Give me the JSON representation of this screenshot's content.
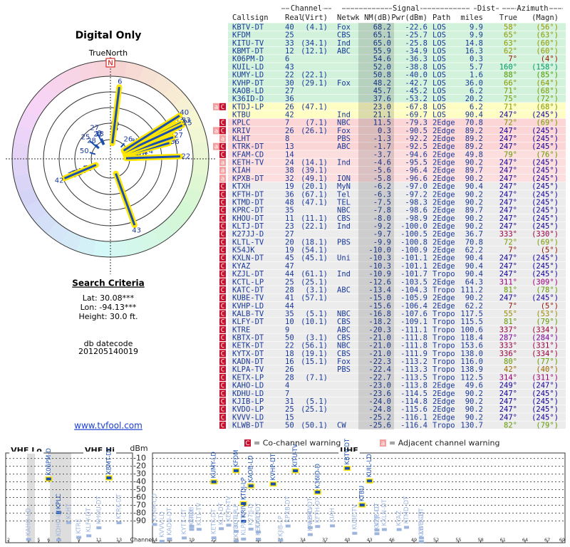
{
  "title": "Digital Only",
  "polar": {
    "north_caption": "TrueNorth",
    "north_mark": "N",
    "rlim": [
      -30,
      70
    ]
  },
  "search": {
    "title": "Search Criteria",
    "lat": "Lat: 30.08***",
    "lon": "Lon: -94.13***",
    "height": "Height: 30.0 ft.",
    "datecode_label": "db datecode",
    "datecode": "201205140019",
    "link": "www.tvfool.com"
  },
  "table": {
    "groups": [
      "Channel",
      "Signal",
      "Dist",
      "Azimuth"
    ],
    "headers": [
      "Callsign",
      "Real",
      "(Virt)",
      "Netwk",
      "NM(dB)",
      "Pwr(dBm)",
      "Path",
      "miles",
      "True",
      "(Magn)"
    ],
    "rows": [
      [
        "KBTV-DT",
        40,
        "(4.1)",
        "Fox",
        68.2,
        -22.6,
        "LOS",
        9.9,
        {
          "value": 58,
          "label": "58°"
        },
        "(56°)"
      ],
      [
        "KFDM",
        25,
        null,
        "CBS",
        65.1,
        -25.7,
        "LOS",
        9.9,
        {
          "value": 65,
          "label": "65°"
        },
        "(63°)"
      ],
      [
        "KITU-TV",
        33,
        "(34.1)",
        "Ind",
        {
          "value": 65,
          "label": "65.0"
        },
        -25.8,
        "LOS",
        14.8,
        {
          "value": 63,
          "label": "63°"
        },
        "(60°)"
      ],
      [
        "KBMT-DT",
        12,
        "(12.1)",
        "ABC",
        55.9,
        -34.9,
        "LOS",
        16.3,
        {
          "value": 62,
          "label": "62°"
        },
        "(60°)"
      ],
      [
        "K06PM-D",
        6,
        null,
        null,
        54.6,
        -36.3,
        "LOS",
        0.3,
        {
          "value": 7,
          "label": "7°"
        },
        "(4°)"
      ],
      [
        "KUIL-LD",
        43,
        null,
        null,
        {
          "value": 52,
          "label": "52.0"
        },
        -38.8,
        "LOS",
        5.7,
        {
          "value": 160,
          "label": "160°"
        },
        "(158°)"
      ],
      [
        "KUMY-LD",
        22,
        "(22.1)",
        null,
        50.8,
        {
          "value": -40,
          "label": "-40.0"
        },
        "LOS",
        1.6,
        {
          "value": 88,
          "label": "88°"
        },
        "(85°)"
      ],
      [
        "KVHP-DT",
        30,
        "(29.1)",
        "Fox",
        48.2,
        -42.7,
        "LOS",
        {
          "value": 36,
          "label": "36.0"
        },
        {
          "value": 66,
          "label": "66°"
        },
        "(64°)"
      ],
      [
        "KAOB-LD",
        27,
        null,
        null,
        45.7,
        -45.2,
        "LOS",
        6.2,
        {
          "value": 71,
          "label": "71°"
        },
        "(68°)"
      ],
      [
        "K36ID-D",
        36,
        null,
        null,
        37.6,
        -53.2,
        "LOS",
        20.2,
        {
          "value": 75,
          "label": "75°"
        },
        "(72°)"
      ],
      [
        "KTDJ-LP",
        26,
        "(47.1)",
        null,
        {
          "value": 23,
          "label": "23.0"
        },
        -67.8,
        "LOS",
        6.2,
        {
          "value": 71,
          "label": "71°"
        },
        "(68°)"
      ],
      [
        "KTBU",
        42,
        null,
        "Ind",
        21.1,
        -69.7,
        "LOS",
        90.4,
        {
          "value": 247,
          "label": "247°"
        },
        "(245°)"
      ],
      [
        "KPLC",
        7,
        "(7.1)",
        "NBC",
        11.5,
        -79.3,
        "2Edge",
        70.8,
        {
          "value": 72,
          "label": "72°"
        },
        "(69°)"
      ],
      [
        "KRIV",
        26,
        "(26.1)",
        "Fox",
        0.3,
        -90.5,
        "2Edge",
        89.2,
        {
          "value": 247,
          "label": "247°"
        },
        "(245°)"
      ],
      [
        "KLHT",
        8,
        null,
        "PBS",
        -1.3,
        -92.2,
        "2Edge",
        89.2,
        {
          "value": 247,
          "label": "247°"
        },
        "(245°)"
      ],
      [
        "KTRK-DT",
        13,
        null,
        "ABC",
        -1.7,
        -92.5,
        "2Edge",
        89.2,
        {
          "value": 247,
          "label": "247°"
        },
        "(245°)"
      ],
      [
        "KFAM-CD",
        14,
        null,
        null,
        -3.7,
        -94.6,
        "2Edge",
        49.8,
        {
          "value": 79,
          "label": "79°"
        },
        "(76°)"
      ],
      [
        "KETH-TV",
        24,
        "(14.1)",
        "Ind",
        -4.6,
        -95.5,
        "2Edge",
        90.2,
        {
          "value": 247,
          "label": "247°"
        },
        "(245°)"
      ],
      [
        "KIAH",
        38,
        "(39.1)",
        null,
        -5.6,
        -96.4,
        "2Edge",
        89.7,
        {
          "value": 247,
          "label": "247°"
        },
        "(245°)"
      ],
      [
        "KPXB-DT",
        32,
        "(49.1)",
        "ION",
        -5.8,
        -96.6,
        "2Edge",
        90.2,
        {
          "value": 247,
          "label": "247°"
        },
        "(245°)"
      ],
      [
        "KTXH",
        19,
        "(20.1)",
        "MyN",
        -6.2,
        {
          "value": -97,
          "label": "-97.0"
        },
        "2Edge",
        90.4,
        {
          "value": 247,
          "label": "247°"
        },
        "(245°)"
      ],
      [
        "KFTH-DT",
        36,
        "(67.1)",
        "Tel",
        -6.3,
        -97.2,
        "2Edge",
        90.2,
        {
          "value": 247,
          "label": "247°"
        },
        "(245°)"
      ],
      [
        "KTMD-DT",
        48,
        "(47.1)",
        "TEL",
        -7.5,
        -98.3,
        "2Edge",
        90.2,
        {
          "value": 247,
          "label": "247°"
        },
        "(245°)"
      ],
      [
        "KPRC-DT",
        35,
        null,
        "NBC",
        -7.8,
        -98.6,
        "2Edge",
        89.7,
        {
          "value": 247,
          "label": "247°"
        },
        "(245°)"
      ],
      [
        "KHOU-DT",
        11,
        "(11.1)",
        "CBS",
        {
          "value": -8,
          "label": "-8.0"
        },
        -98.9,
        "2Edge",
        90.2,
        {
          "value": 247,
          "label": "247°"
        },
        "(245°)"
      ],
      [
        "KLTJ-DT",
        23,
        "(22.1)",
        "Ind",
        -9.2,
        {
          "value": -100,
          "label": "-100.0"
        },
        "2Edge",
        90.2,
        {
          "value": 247,
          "label": "247°"
        },
        "(245°)"
      ],
      [
        "K27JJ-D",
        27,
        null,
        null,
        -9.7,
        -100.5,
        "2Edge",
        36.7,
        {
          "value": 333,
          "label": "333°"
        },
        "(330°)"
      ],
      [
        "KLTL-TV",
        20,
        "(18.1)",
        "PBS",
        -9.9,
        -100.8,
        "2Edge",
        70.8,
        {
          "value": 72,
          "label": "72°"
        },
        "(69°)"
      ],
      [
        "K54JK",
        19,
        "(54.1)",
        null,
        {
          "value": -10,
          "label": "-10.0"
        },
        -100.9,
        "2Edge",
        62.2,
        {
          "value": 7,
          "label": "7°"
        },
        "(5°)"
      ],
      [
        "KXLN-DT",
        45,
        "(45.1)",
        "Uni",
        -10.3,
        -101.1,
        "2Edge",
        90.4,
        {
          "value": 247,
          "label": "247°"
        },
        "(245°)"
      ],
      [
        "KYAZ",
        47,
        null,
        null,
        -10.3,
        -101.1,
        "2Edge",
        90.4,
        {
          "value": 247,
          "label": "247°"
        },
        "(245°)"
      ],
      [
        "KZJL-DT",
        44,
        "(61.1)",
        "Ind",
        -10.9,
        -101.7,
        "Tropo",
        90.4,
        {
          "value": 247,
          "label": "247°"
        },
        "(245°)"
      ],
      [
        "KCTL-LP",
        25,
        "(25.1)",
        null,
        -12.6,
        -103.5,
        "2Edge",
        64.3,
        {
          "value": 311,
          "label": "311°"
        },
        "(309°)"
      ],
      [
        "KATC-DT",
        28,
        "(3.1)",
        "ABC",
        -13.4,
        -104.3,
        "Tropo",
        111.2,
        {
          "value": 81,
          "label": "81°"
        },
        "(78°)"
      ],
      [
        "KUBE-TV",
        41,
        "(57.1)",
        null,
        {
          "value": -15,
          "label": "-15.0"
        },
        -105.9,
        "2Edge",
        90.2,
        {
          "value": 247,
          "label": "247°"
        },
        "(245°)"
      ],
      [
        "KVHP-LD",
        44,
        null,
        null,
        -15.6,
        -106.4,
        "2Edge",
        62.2,
        {
          "value": 7,
          "label": "7°"
        },
        "(5°)"
      ],
      [
        "KALB-TV",
        35,
        "(5.1)",
        "NBC",
        -16.8,
        -107.6,
        "Tropo",
        117.5,
        {
          "value": 55,
          "label": "55°"
        },
        "(53°)"
      ],
      [
        "KLFY-DT",
        10,
        "(10.1)",
        "CBS",
        -18.2,
        -109.1,
        "Tropo",
        115.5,
        {
          "value": 81,
          "label": "81°"
        },
        "(79°)"
      ],
      [
        "KTRE",
        9,
        null,
        "ABC",
        -20.3,
        -111.1,
        "Tropo",
        100.6,
        {
          "value": 337,
          "label": "337°"
        },
        "(334°)"
      ],
      [
        "KBTX-DT",
        50,
        "(3.1)",
        "CBS",
        {
          "value": -21,
          "label": "-21.0"
        },
        -111.8,
        "Tropo",
        118.4,
        {
          "value": 287,
          "label": "287°"
        },
        "(284°)"
      ],
      [
        "KETK-DT",
        22,
        "(56.1)",
        "NBC",
        {
          "value": -21,
          "label": "-21.0"
        },
        -111.8,
        "Tropo",
        153.6,
        {
          "value": 333,
          "label": "333°"
        },
        "(331°)"
      ],
      [
        "KYTX-DT",
        18,
        "(19.1)",
        "CBS",
        {
          "value": -21,
          "label": "-21.0"
        },
        -111.9,
        "Tropo",
        {
          "value": 138,
          "label": "138.0"
        },
        {
          "value": 336,
          "label": "336°"
        },
        "(334°)"
      ],
      [
        "KADN-DT",
        16,
        "(15.1)",
        "Fox",
        -22.3,
        -113.2,
        "Tropo",
        {
          "value": 116,
          "label": "116.0"
        },
        {
          "value": 80,
          "label": "80°"
        },
        "(77°)"
      ],
      [
        "KLPA-TV",
        26,
        null,
        "PBS",
        -22.4,
        -113.3,
        "Tropo",
        138.9,
        {
          "value": 42,
          "label": "42°"
        },
        "(40°)"
      ],
      [
        "KETX-LP",
        28,
        "(7.1)",
        null,
        -22.7,
        -113.5,
        "Tropo",
        112.5,
        {
          "value": 314,
          "label": "314°"
        },
        "(311°)"
      ],
      [
        "KAHO-LD",
        4,
        null,
        null,
        {
          "value": -23,
          "label": "-23.0"
        },
        -113.8,
        "2Edge",
        49.6,
        {
          "value": 249,
          "label": "249°"
        },
        "(247°)"
      ],
      [
        "KDHU-LD",
        7,
        null,
        null,
        -23.6,
        -114.5,
        "2Edge",
        90.2,
        {
          "value": 247,
          "label": "247°"
        },
        "(245°)"
      ],
      [
        "KJIB-LP",
        31,
        "(5.1)",
        null,
        {
          "value": -24,
          "label": "-24.0"
        },
        -114.8,
        "2Edge",
        90.2,
        {
          "value": 247,
          "label": "247°"
        },
        "(245°)"
      ],
      [
        "KVDO-LP",
        25,
        "(25.1)",
        null,
        -24.8,
        -115.6,
        "2Edge",
        90.2,
        {
          "value": 247,
          "label": "247°"
        },
        "(245°)"
      ],
      [
        "KVVV-LD",
        15,
        null,
        null,
        -25.2,
        -116.1,
        "2Edge",
        90.2,
        {
          "value": 247,
          "label": "247°"
        },
        "(245°)"
      ],
      [
        "KLWB-DT",
        50,
        "(50.1)",
        "CW",
        -25.6,
        -116.4,
        "Tropo",
        130.7,
        {
          "value": 82,
          "label": "82°"
        },
        "(79°)"
      ]
    ],
    "warnings": [
      null,
      null,
      null,
      null,
      null,
      null,
      null,
      null,
      null,
      null,
      [
        "a",
        "C"
      ],
      null,
      [
        "C"
      ],
      [
        "a",
        "C"
      ],
      [
        "a"
      ],
      [
        "a",
        "C"
      ],
      [
        "C"
      ],
      [
        "a"
      ],
      [
        "a"
      ],
      [
        "a"
      ],
      [
        "C"
      ],
      [
        "C"
      ],
      [
        "C"
      ],
      [
        "C"
      ],
      [
        "C"
      ],
      [
        "C"
      ],
      [
        "C"
      ],
      [
        "C"
      ],
      [
        "C"
      ],
      [
        "C"
      ],
      [
        "C"
      ],
      [
        "C"
      ],
      [
        "C"
      ],
      [
        "C"
      ],
      [
        "C"
      ],
      [
        "C"
      ],
      [
        "C"
      ],
      [
        "C"
      ],
      [
        "C"
      ],
      [
        "C"
      ],
      [
        "C"
      ],
      [
        "C"
      ],
      [
        "C"
      ],
      [
        "C"
      ],
      [
        "C"
      ],
      [
        "C"
      ],
      [
        "C"
      ],
      [
        "C"
      ],
      [
        "C"
      ],
      [
        "C"
      ],
      [
        "C"
      ]
    ],
    "row_colors": [
      "#d2f2dc",
      "#d2f2dc",
      "#d2f2dc",
      "#d2f2dc",
      "#d2f2dc",
      "#d2f2dc",
      "#d2f2dc",
      "#d2f2dc",
      "#d2f2dc",
      "#d2f2dc",
      "#fdfdc4",
      "#fdfdc4",
      "#fcd6d6",
      "#fcd6d6",
      "#fcd6d6",
      "#fcd6d6",
      "#fcdede",
      "#fcdede",
      "#fcdede",
      "#fcdede",
      "#ececec",
      "#ececec",
      "#ececec",
      "#ececec",
      "#ececec",
      "#ececec",
      "#ececec",
      "#ececec",
      "#ececec",
      "#ececec",
      "#ececec",
      "#ececec",
      "#ececec",
      "#ececec",
      "#ececec",
      "#ececec",
      "#ececec",
      "#ececec",
      "#ececec",
      "#ececec",
      "#ececec",
      "#ececec",
      "#ececec",
      "#ececec",
      "#ececec",
      "#ececec",
      "#ececec",
      "#ececec",
      "#ececec",
      "#ececec",
      "#ececec"
    ]
  },
  "legend": {
    "co_mark": "C",
    "co_text": "= Co-channel warning",
    "adj_mark": "a",
    "adj_text": "= Adjacent channel warning"
  },
  "spectrum": {
    "bands": [
      "VHF Lo",
      "VHF Hi",
      "UHF"
    ],
    "unit": "dBm",
    "channel_label": "Channel",
    "ylim": [
      -118,
      -3
    ],
    "yticks": [
      -10,
      -20,
      -30,
      -40,
      -50,
      -60,
      -70,
      -80,
      -90
    ],
    "vhf_lim": [
      2,
      13
    ],
    "vhf_ticks": [
      2,
      4,
      5,
      6,
      7,
      9,
      11,
      13
    ],
    "uhf_lim": [
      14,
      69
    ],
    "uhf_ticks": [
      14,
      16,
      19,
      22,
      25,
      28,
      31,
      34,
      37,
      40,
      43,
      46,
      49,
      52,
      55,
      58,
      61,
      64,
      67,
      69
    ]
  }
}
